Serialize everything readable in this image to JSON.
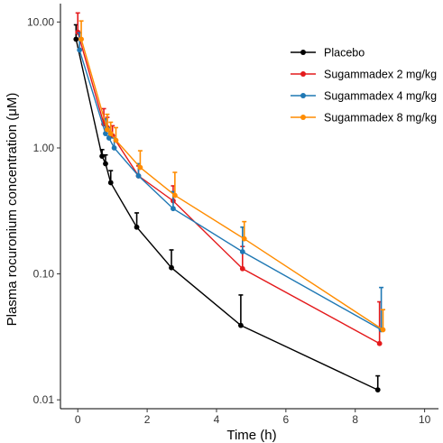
{
  "chart_data": {
    "type": "line",
    "xlabel": "Time (h)",
    "ylabel": "Plasma rocuronium concentration (μM)",
    "xlim": [
      -0.5,
      10.4
    ],
    "ylim": [
      0.0085,
      14
    ],
    "yscale": "log",
    "grid": false,
    "legend_position": "top-right",
    "x_ticks": [
      {
        "value": 0,
        "label": "0"
      },
      {
        "value": 2,
        "label": "2"
      },
      {
        "value": 4,
        "label": "4"
      },
      {
        "value": 6,
        "label": "6"
      },
      {
        "value": 8,
        "label": "8"
      },
      {
        "value": 10,
        "label": "10"
      }
    ],
    "y_ticks": [
      {
        "value": 0.01,
        "label": "0.01"
      },
      {
        "value": 0.1,
        "label": "0.10"
      },
      {
        "value": 1,
        "label": "1.00"
      },
      {
        "value": 10,
        "label": "10.00"
      }
    ],
    "series": [
      {
        "name": "Placebo",
        "color": "#000000",
        "points": [
          {
            "x": -0.05,
            "y": 7.3,
            "err": 9.5
          },
          {
            "x": 0.7,
            "y": 0.86,
            "err": 0.97
          },
          {
            "x": 0.8,
            "y": 0.75,
            "err": 0.88
          },
          {
            "x": 0.95,
            "y": 0.53,
            "err": 0.66
          },
          {
            "x": 1.7,
            "y": 0.235,
            "err": 0.305
          },
          {
            "x": 2.7,
            "y": 0.112,
            "err": 0.155
          },
          {
            "x": 4.7,
            "y": 0.039,
            "err": 0.068
          },
          {
            "x": 8.65,
            "y": 0.012,
            "err": 0.0155
          }
        ]
      },
      {
        "name": "Sugammadex 2 mg/kg",
        "color": "#e41a1c",
        "points": [
          {
            "x": 0.0,
            "y": 8.3,
            "err": 11.8
          },
          {
            "x": 0.75,
            "y": 1.55,
            "err": 2.05
          },
          {
            "x": 0.85,
            "y": 1.45,
            "err": 1.75
          },
          {
            "x": 1.0,
            "y": 1.25,
            "err": 1.5
          },
          {
            "x": 1.75,
            "y": 0.6,
            "err": 0.72
          },
          {
            "x": 2.75,
            "y": 0.38,
            "err": 0.5
          },
          {
            "x": 4.75,
            "y": 0.11,
            "err": 0.165
          },
          {
            "x": 8.7,
            "y": 0.028,
            "err": 0.06
          }
        ]
      },
      {
        "name": "Sugammadex 4 mg/kg",
        "color": "#1f78b4",
        "points": [
          {
            "x": 0.05,
            "y": 6.0,
            "err": 8.2
          },
          {
            "x": 0.8,
            "y": 1.3,
            "err": 1.7
          },
          {
            "x": 0.9,
            "y": 1.2,
            "err": 1.45
          },
          {
            "x": 1.05,
            "y": 1.0,
            "err": 1.2
          },
          {
            "x": 1.75,
            "y": 0.6,
            "err": 0.75
          },
          {
            "x": 2.75,
            "y": 0.33,
            "err": 0.45
          },
          {
            "x": 4.75,
            "y": 0.15,
            "err": 0.235
          },
          {
            "x": 8.75,
            "y": 0.036,
            "err": 0.078
          }
        ]
      },
      {
        "name": "Sugammadex 8 mg/kg",
        "color": "#ff8c00",
        "points": [
          {
            "x": 0.1,
            "y": 7.3,
            "err": 10.2
          },
          {
            "x": 0.85,
            "y": 1.4,
            "err": 1.85
          },
          {
            "x": 0.95,
            "y": 1.3,
            "err": 1.6
          },
          {
            "x": 1.1,
            "y": 1.15,
            "err": 1.45
          },
          {
            "x": 1.8,
            "y": 0.7,
            "err": 0.95
          },
          {
            "x": 2.8,
            "y": 0.42,
            "err": 0.64
          },
          {
            "x": 4.8,
            "y": 0.19,
            "err": 0.26
          },
          {
            "x": 8.8,
            "y": 0.036,
            "err": 0.052
          }
        ]
      }
    ]
  }
}
